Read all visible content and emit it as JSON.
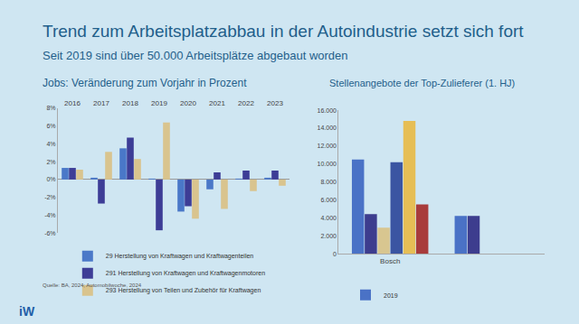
{
  "slide": {
    "title": "Trend zum Arbeitsplatzabbau in der Autoindustrie setzt sich fort",
    "subtitle": "Seit 2019 sind über 50.000 Arbeitsplätze abgebaut worden",
    "source": "Quelle: BA, 2024; Automobilwoche, 2024",
    "logo": "iW"
  },
  "chart_data": [
    {
      "type": "bar",
      "title": "Jobs: Veränderung zum Vorjahr in Prozent",
      "categories": [
        "2016",
        "2017",
        "2018",
        "2019",
        "2020",
        "2021",
        "2022",
        "2023"
      ],
      "series": [
        {
          "name": "29 Herstellung von Kraftwagen und Kraftwagenteilen",
          "color": "#4a78c8",
          "values": [
            1.3,
            0.2,
            3.5,
            0.1,
            -3.6,
            -1.1,
            0.1,
            0.2
          ]
        },
        {
          "name": "291 Herstellung von Kraftwagen und Kraftwagenmotoren",
          "color": "#3d3d96",
          "values": [
            1.3,
            -2.7,
            4.7,
            -5.7,
            -3.0,
            0.8,
            1.0,
            1.0
          ]
        },
        {
          "name": "293 Herstellung von Teilen und Zubehör für Kraftwagen",
          "color": "#d9c48e",
          "values": [
            1.1,
            3.1,
            2.3,
            6.4,
            -4.4,
            -3.3,
            -1.3,
            -0.7
          ]
        }
      ],
      "ylim": [
        -6,
        8
      ],
      "yticks": [
        {
          "value": -6,
          "label": "-6%"
        },
        {
          "value": -4,
          "label": "-4%"
        },
        {
          "value": -2,
          "label": "-2%"
        },
        {
          "value": 0,
          "label": "0%"
        },
        {
          "value": 2,
          "label": "2%"
        },
        {
          "value": 4,
          "label": "4%"
        },
        {
          "value": 6,
          "label": "6%"
        },
        {
          "value": 8,
          "label": "8%"
        }
      ],
      "grid": false,
      "legend": "bottom"
    },
    {
      "type": "bar",
      "title": "Stellenangebote der Top-Zulieferer (1. HJ)",
      "categories": [
        "Bosch",
        null
      ],
      "series": [
        {
          "name": "2019",
          "color": "#4a72c6",
          "values": [
            10500,
            4200
          ]
        },
        {
          "name": null,
          "color": "#3d3d8e",
          "values": [
            4400,
            4200
          ]
        },
        {
          "name": null,
          "color": "#d8c690",
          "values": [
            2900,
            null
          ]
        },
        {
          "name": null,
          "color": "#3b55a2",
          "values": [
            10200,
            null
          ]
        },
        {
          "name": null,
          "color": "#e6be55",
          "values": [
            14800,
            null
          ]
        },
        {
          "name": null,
          "color": "#a83c3c",
          "values": [
            5500,
            null
          ]
        }
      ],
      "ylim": [
        0,
        16000
      ],
      "yticks": [
        0,
        {
          "value": 2000,
          "label": "2.000"
        },
        {
          "value": 4000,
          "label": "4.000"
        },
        {
          "value": 6000,
          "label": "6.000"
        },
        {
          "value": 8000,
          "label": "8.000"
        },
        {
          "value": 10000,
          "label": "10.000"
        },
        {
          "value": 12000,
          "label": "12.000"
        },
        {
          "value": 14000,
          "label": "14.000"
        },
        {
          "value": 16000,
          "label": "16.000"
        }
      ],
      "grid": false,
      "legend": "bottom"
    }
  ]
}
